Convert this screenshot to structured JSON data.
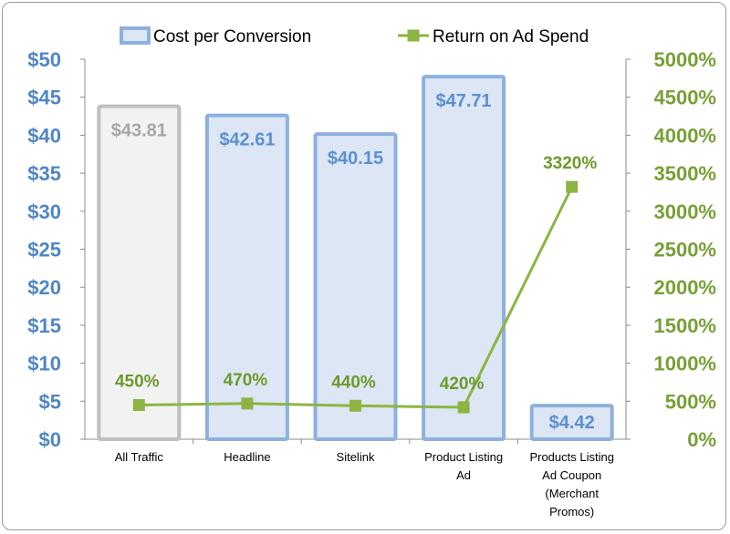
{
  "chart_data": {
    "type": "bar",
    "categories": [
      [
        "All Traffic"
      ],
      [
        "Headline"
      ],
      [
        "Sitelink"
      ],
      [
        "Product Listing",
        "Ad"
      ],
      [
        "Products Listing",
        "Ad Coupon",
        "(Merchant",
        "Promos)"
      ]
    ],
    "series": [
      {
        "name": "Cost per Conversion",
        "type": "bar",
        "axis": "left",
        "values": [
          43.81,
          42.61,
          40.15,
          47.71,
          4.42
        ],
        "labels": [
          "$43.81",
          "$42.61",
          "$40.15",
          "$47.71",
          "$4.42"
        ],
        "color": "#dce6f4",
        "border_color": "#8db1dd",
        "highlight_fill": "#f2f2f2",
        "highlight_border": "#bfbfbf",
        "highlight_label_color": "#a6a6a6",
        "label_color": "#5b8fd1"
      },
      {
        "name": "Return on Ad Spend",
        "type": "line",
        "axis": "right",
        "values": [
          450,
          470,
          440,
          420,
          3320
        ],
        "labels": [
          "450%",
          "470%",
          "440%",
          "420%",
          "3320%"
        ],
        "color": "#8db443",
        "marker_color": "#8db443",
        "label_color": "#6c9a2c"
      }
    ],
    "y_left": {
      "ylim": [
        0,
        50
      ],
      "ticks": [
        "$0",
        "$5",
        "$10",
        "$15",
        "$20",
        "$25",
        "$30",
        "$35",
        "$40",
        "$45",
        "$50"
      ],
      "color": "#4f86c6"
    },
    "y_right": {
      "ylim": [
        0,
        5000
      ],
      "ticks": [
        "0%",
        "500%",
        "1000%",
        "1500%",
        "2000%",
        "2500%",
        "3000%",
        "3500%",
        "4000%",
        "4500%",
        "5000%"
      ],
      "color": "#77a035"
    },
    "legend_placement": "top",
    "grid": false
  }
}
